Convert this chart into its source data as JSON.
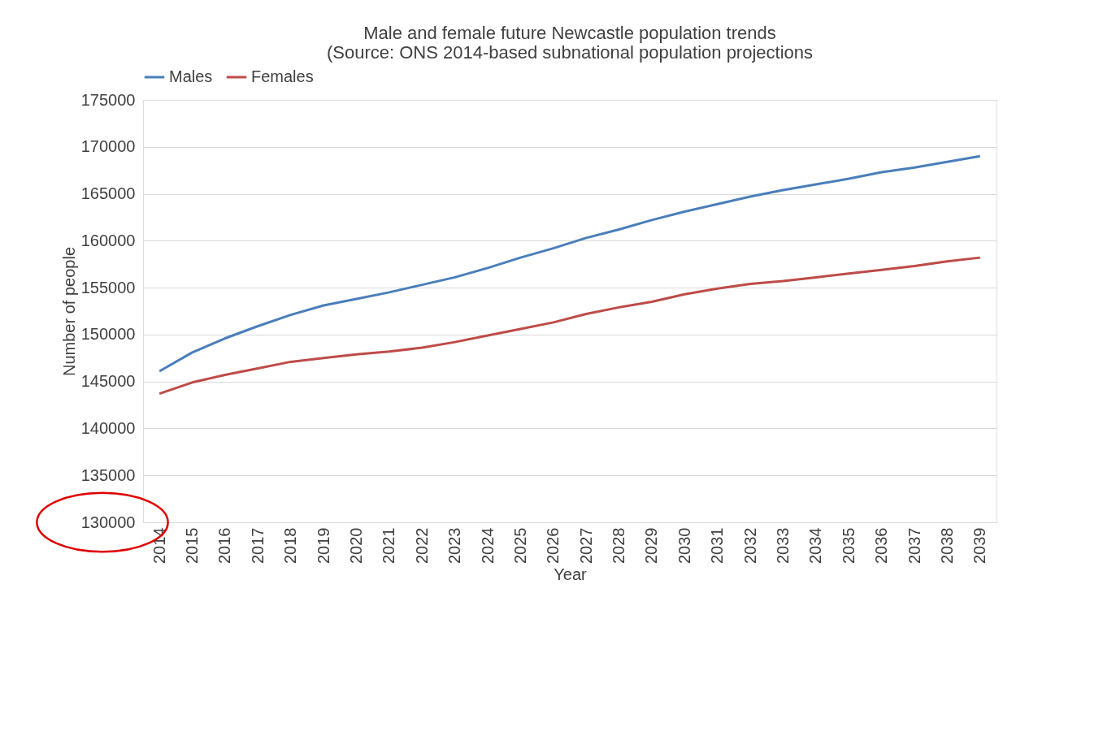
{
  "chart_data": {
    "type": "line",
    "title": [
      "Male and female future Newcastle population trends",
      "(Source: ONS 2014-based subnational population projections"
    ],
    "xlabel": "Year",
    "ylabel": "Number of people",
    "categories": [
      "2014",
      "2015",
      "2016",
      "2017",
      "2018",
      "2019",
      "2020",
      "2021",
      "2022",
      "2023",
      "2024",
      "2025",
      "2026",
      "2027",
      "2028",
      "2029",
      "2030",
      "2031",
      "2032",
      "2033",
      "2034",
      "2035",
      "2036",
      "2037",
      "2038",
      "2039"
    ],
    "series": [
      {
        "name": "Males",
        "color": "#4a7ebb",
        "values": [
          146100,
          148100,
          149600,
          150900,
          152100,
          153100,
          153800,
          154500,
          155300,
          156100,
          157100,
          158200,
          159200,
          160300,
          161200,
          162200,
          163100,
          163900,
          164700,
          165400,
          166000,
          166600,
          167300,
          167800,
          168400,
          169000
        ]
      },
      {
        "name": "Females",
        "color": "#be4b48",
        "values": [
          143700,
          144900,
          145700,
          146400,
          147100,
          147500,
          147900,
          148200,
          148600,
          149200,
          149900,
          150600,
          151300,
          152200,
          152900,
          153500,
          154300,
          154900,
          155400,
          155700,
          156100,
          156500,
          156900,
          157300,
          157800,
          158200
        ]
      }
    ],
    "ylim": [
      130000,
      175000
    ],
    "yticks": [
      130000,
      135000,
      140000,
      145000,
      150000,
      155000,
      160000,
      165000,
      170000,
      175000
    ],
    "grid": "y",
    "legend": "top",
    "marker": "none",
    "line_style": "solid"
  }
}
